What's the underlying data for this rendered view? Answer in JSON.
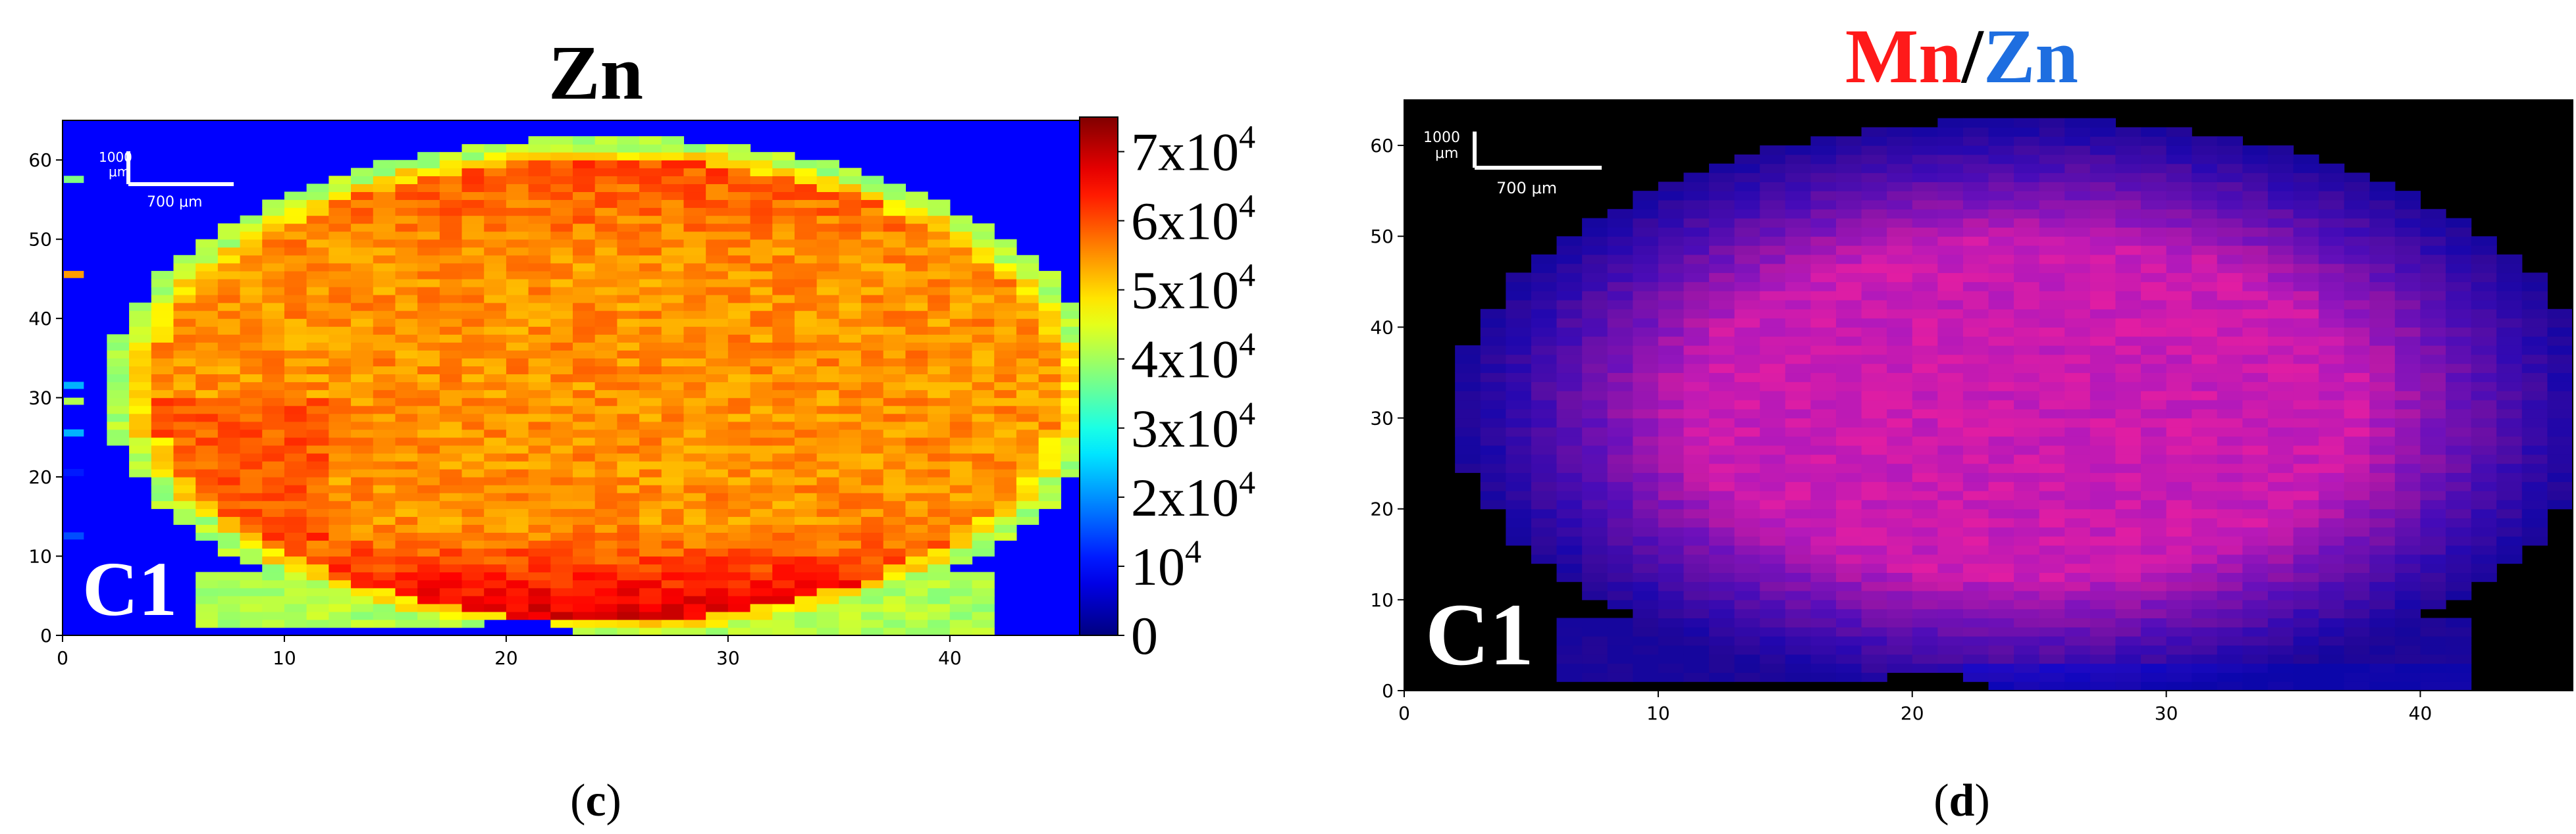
{
  "panels": [
    {
      "id": "c",
      "title_parts": [
        {
          "text": "Zn",
          "color": "#000000"
        }
      ],
      "caption": "(c)",
      "caption_letter": "c",
      "sample_label": "C1",
      "scale_bar": {
        "top_label": "1000\nμm",
        "bottom_label": "700 μm"
      },
      "background": "#0000ff"
    },
    {
      "id": "d",
      "title_parts": [
        {
          "text": "Mn",
          "color": "#ff1a1a"
        },
        {
          "text": "/",
          "color": "#000000"
        },
        {
          "text": "Zn",
          "color": "#1e6ee0"
        }
      ],
      "caption": "(d)",
      "caption_letter": "d",
      "sample_label": "C1",
      "scale_bar": {
        "top_label": "1000\nμm",
        "bottom_label": "700 μm"
      },
      "background": "#000000"
    }
  ],
  "chart_data": [
    {
      "type": "heatmap",
      "title": "Zn",
      "xlabel": "",
      "ylabel": "",
      "xlim": [
        0,
        46
      ],
      "ylim": [
        0,
        65
      ],
      "x_ticks": [
        0,
        10,
        20,
        30,
        40
      ],
      "y_ticks": [
        0,
        10,
        20,
        30,
        40,
        50,
        60
      ],
      "colorbar": {
        "range": [
          0,
          75000
        ],
        "ticks": [
          {
            "value": 0,
            "base": "0",
            "exp": ""
          },
          {
            "value": 10000,
            "base": "10",
            "exp": "4"
          },
          {
            "value": 20000,
            "base": "2x10",
            "exp": "4"
          },
          {
            "value": 30000,
            "base": "3x10",
            "exp": "4"
          },
          {
            "value": 40000,
            "base": "4x10",
            "exp": "4"
          },
          {
            "value": 50000,
            "base": "5x10",
            "exp": "4"
          },
          {
            "value": 60000,
            "base": "6x10",
            "exp": "4"
          },
          {
            "value": 70000,
            "base": "7x10",
            "exp": "4"
          }
        ],
        "colormap": "jet"
      },
      "region": "elliptical sample occupying x 2–46, y 0–61; blue (≈0) outside",
      "intensity_range_inside": [
        40000,
        72000
      ],
      "edge_intensity": 40000,
      "bottom_intensity_max": 72000
    },
    {
      "type": "heatmap",
      "title": "Mn/Zn",
      "xlabel": "",
      "ylabel": "",
      "xlim": [
        0,
        46
      ],
      "ylim": [
        0,
        65
      ],
      "x_ticks": [
        0,
        10,
        20,
        30,
        40
      ],
      "y_ticks": [
        0,
        10,
        20,
        30,
        40,
        50,
        60
      ],
      "colormap": "red=Mn, blue=Zn overlay",
      "colors": {
        "mn": "#ff1a1a",
        "zn": "#1e6ee0",
        "background": "#000000"
      },
      "region": "elliptical sample occupying x 3–46, y 0–61; black outside; magenta/red core, blue rim"
    }
  ]
}
